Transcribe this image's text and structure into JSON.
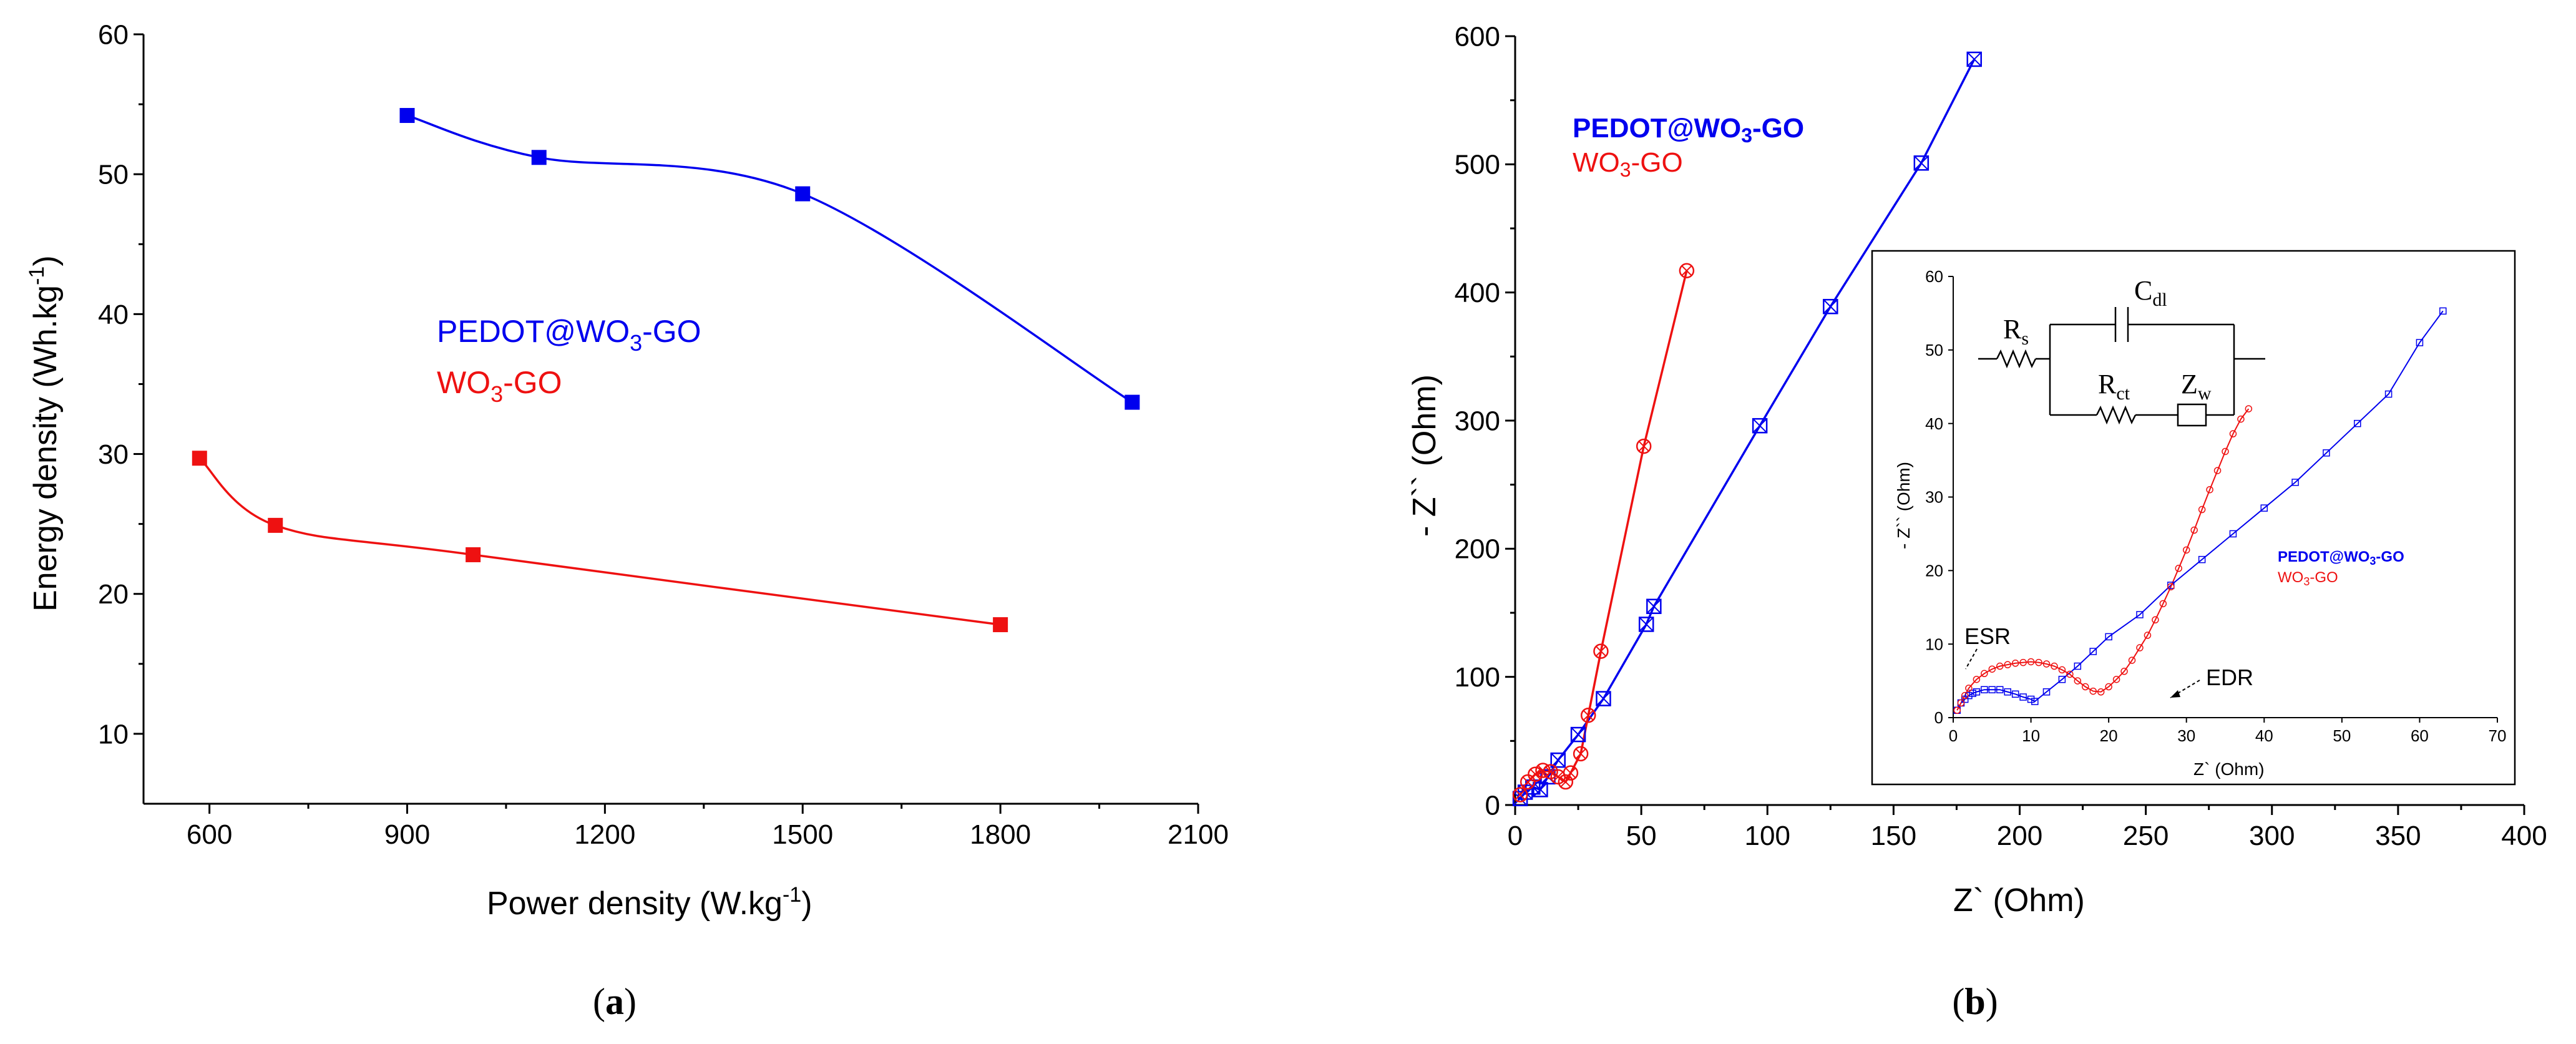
{
  "colors": {
    "blue": "#0000ee",
    "red": "#ee1111"
  },
  "chart_data": [
    {
      "type": "line",
      "panel_label": "a",
      "title": "",
      "xlabel": "Power density (W.kg",
      "xlabel_sup": "-1",
      "xlabel_end": ")",
      "ylabel": "Energy density (Wh.kg",
      "ylabel_sup": "-1",
      "ylabel_end": ")",
      "xlim": [
        500,
        2100
      ],
      "ylim": [
        5,
        60
      ],
      "xticks": [
        "600",
        "900",
        "1200",
        "1500",
        "1800",
        "2100"
      ],
      "yticks": [
        "10",
        "20",
        "30",
        "40",
        "50",
        "60"
      ],
      "series": [
        {
          "name": "PEDOT@WO3-GO",
          "legend_main": "PEDOT@WO",
          "legend_sub": "3",
          "legend_end": "-GO",
          "color": "#0000ee",
          "x": [
            900,
            1100,
            1500,
            2000
          ],
          "y": [
            54.2,
            51.2,
            48.6,
            33.7
          ]
        },
        {
          "name": "WO3-GO",
          "legend_main": "WO",
          "legend_sub": "3",
          "legend_end": "-GO",
          "color": "#ee1111",
          "x": [
            585,
            700,
            1000,
            1800
          ],
          "y": [
            29.7,
            24.9,
            22.8,
            17.8
          ]
        }
      ]
    },
    {
      "type": "line",
      "panel_label": "b",
      "title": "",
      "xlabel": "Z` (Ohm)",
      "ylabel": "- Z`` (Ohm)",
      "xlim": [
        0,
        400
      ],
      "ylim": [
        0,
        600
      ],
      "xticks": [
        "0",
        "50",
        "100",
        "150",
        "200",
        "250",
        "300",
        "350",
        "400"
      ],
      "yticks": [
        "0",
        "100",
        "200",
        "300",
        "400",
        "500",
        "600"
      ],
      "series": [
        {
          "name": "PEDOT@WO3-GO",
          "legend_main": "PEDOT@WO",
          "legend_sub": "3",
          "legend_end": "-GO",
          "color": "#0000ee",
          "x": [
            2,
            4,
            7,
            10,
            13,
            17,
            25,
            35,
            52,
            55,
            97,
            125,
            161,
            182
          ],
          "y": [
            5,
            10,
            14,
            12,
            22,
            35,
            55,
            83,
            141,
            155,
            296,
            389,
            501,
            582
          ]
        },
        {
          "name": "WO3-GO",
          "legend_main": "WO",
          "legend_sub": "3",
          "legend_end": "-GO",
          "color": "#ee1111",
          "x": [
            2,
            5,
            8,
            11,
            14,
            17,
            20,
            22,
            26,
            29,
            34,
            51,
            68
          ],
          "y": [
            8,
            18,
            24,
            27,
            26,
            22,
            18,
            25,
            40,
            70,
            120,
            280,
            417
          ]
        }
      ]
    },
    {
      "type": "line",
      "role": "inset",
      "xlabel": "Z` (Ohm)",
      "ylabel": "- Z`` (Ohm)",
      "xlim": [
        0,
        70
      ],
      "ylim": [
        0,
        60
      ],
      "xticks": [
        "0",
        "10",
        "20",
        "30",
        "40",
        "50",
        "60",
        "70"
      ],
      "yticks": [
        "0",
        "10",
        "20",
        "30",
        "40",
        "50",
        "60"
      ],
      "annotations": [
        "ESR",
        "EDR"
      ],
      "circuit_labels": {
        "rs": "R",
        "rs_sub": "s",
        "cdl": "C",
        "cdl_sub": "dl",
        "rct": "R",
        "rct_sub": "ct",
        "zw": "Z",
        "zw_sub": "w"
      },
      "series": [
        {
          "name": "PEDOT@WO3-GO",
          "legend_main": "PEDOT@WO",
          "legend_sub": "3",
          "legend_end": "-GO",
          "color": "#0000ee",
          "x": [
            0.5,
            1,
            1.5,
            2,
            2.5,
            3,
            4,
            5,
            6,
            7,
            8,
            9,
            10,
            10.5,
            12,
            14,
            16,
            18,
            20,
            24,
            28,
            32,
            36,
            40,
            44,
            48,
            52,
            56,
            60,
            63
          ],
          "y": [
            1,
            2,
            2.5,
            3,
            3.3,
            3.5,
            3.8,
            3.8,
            3.8,
            3.5,
            3.2,
            2.8,
            2.5,
            2.2,
            3.5,
            5.2,
            7,
            9,
            11,
            14,
            18,
            21.5,
            25,
            28.5,
            32,
            36,
            40,
            44,
            51,
            55.3
          ]
        },
        {
          "name": "WO3-GO",
          "legend_main": "WO",
          "legend_sub": "3",
          "legend_end": "-GO",
          "color": "#ee1111",
          "x": [
            0.5,
            1,
            1.5,
            2,
            3,
            4,
            5,
            6,
            7,
            8,
            9,
            10,
            11,
            12,
            13,
            14,
            15,
            16,
            17,
            18,
            19,
            20,
            21,
            22,
            23,
            24,
            25,
            26,
            27,
            28,
            29,
            30,
            31,
            32,
            33,
            34,
            35,
            36,
            37,
            38
          ],
          "y": [
            1,
            2,
            3,
            4,
            5.2,
            6,
            6.6,
            7,
            7.2,
            7.4,
            7.5,
            7.6,
            7.5,
            7.3,
            7,
            6.5,
            5.9,
            5,
            4.2,
            3.6,
            3.5,
            4.2,
            5.2,
            6.3,
            7.8,
            9.5,
            11.2,
            13.3,
            15.5,
            17.8,
            20.3,
            22.8,
            25.5,
            28.3,
            31,
            33.6,
            36.2,
            38.6,
            40.6,
            42
          ]
        }
      ]
    }
  ]
}
